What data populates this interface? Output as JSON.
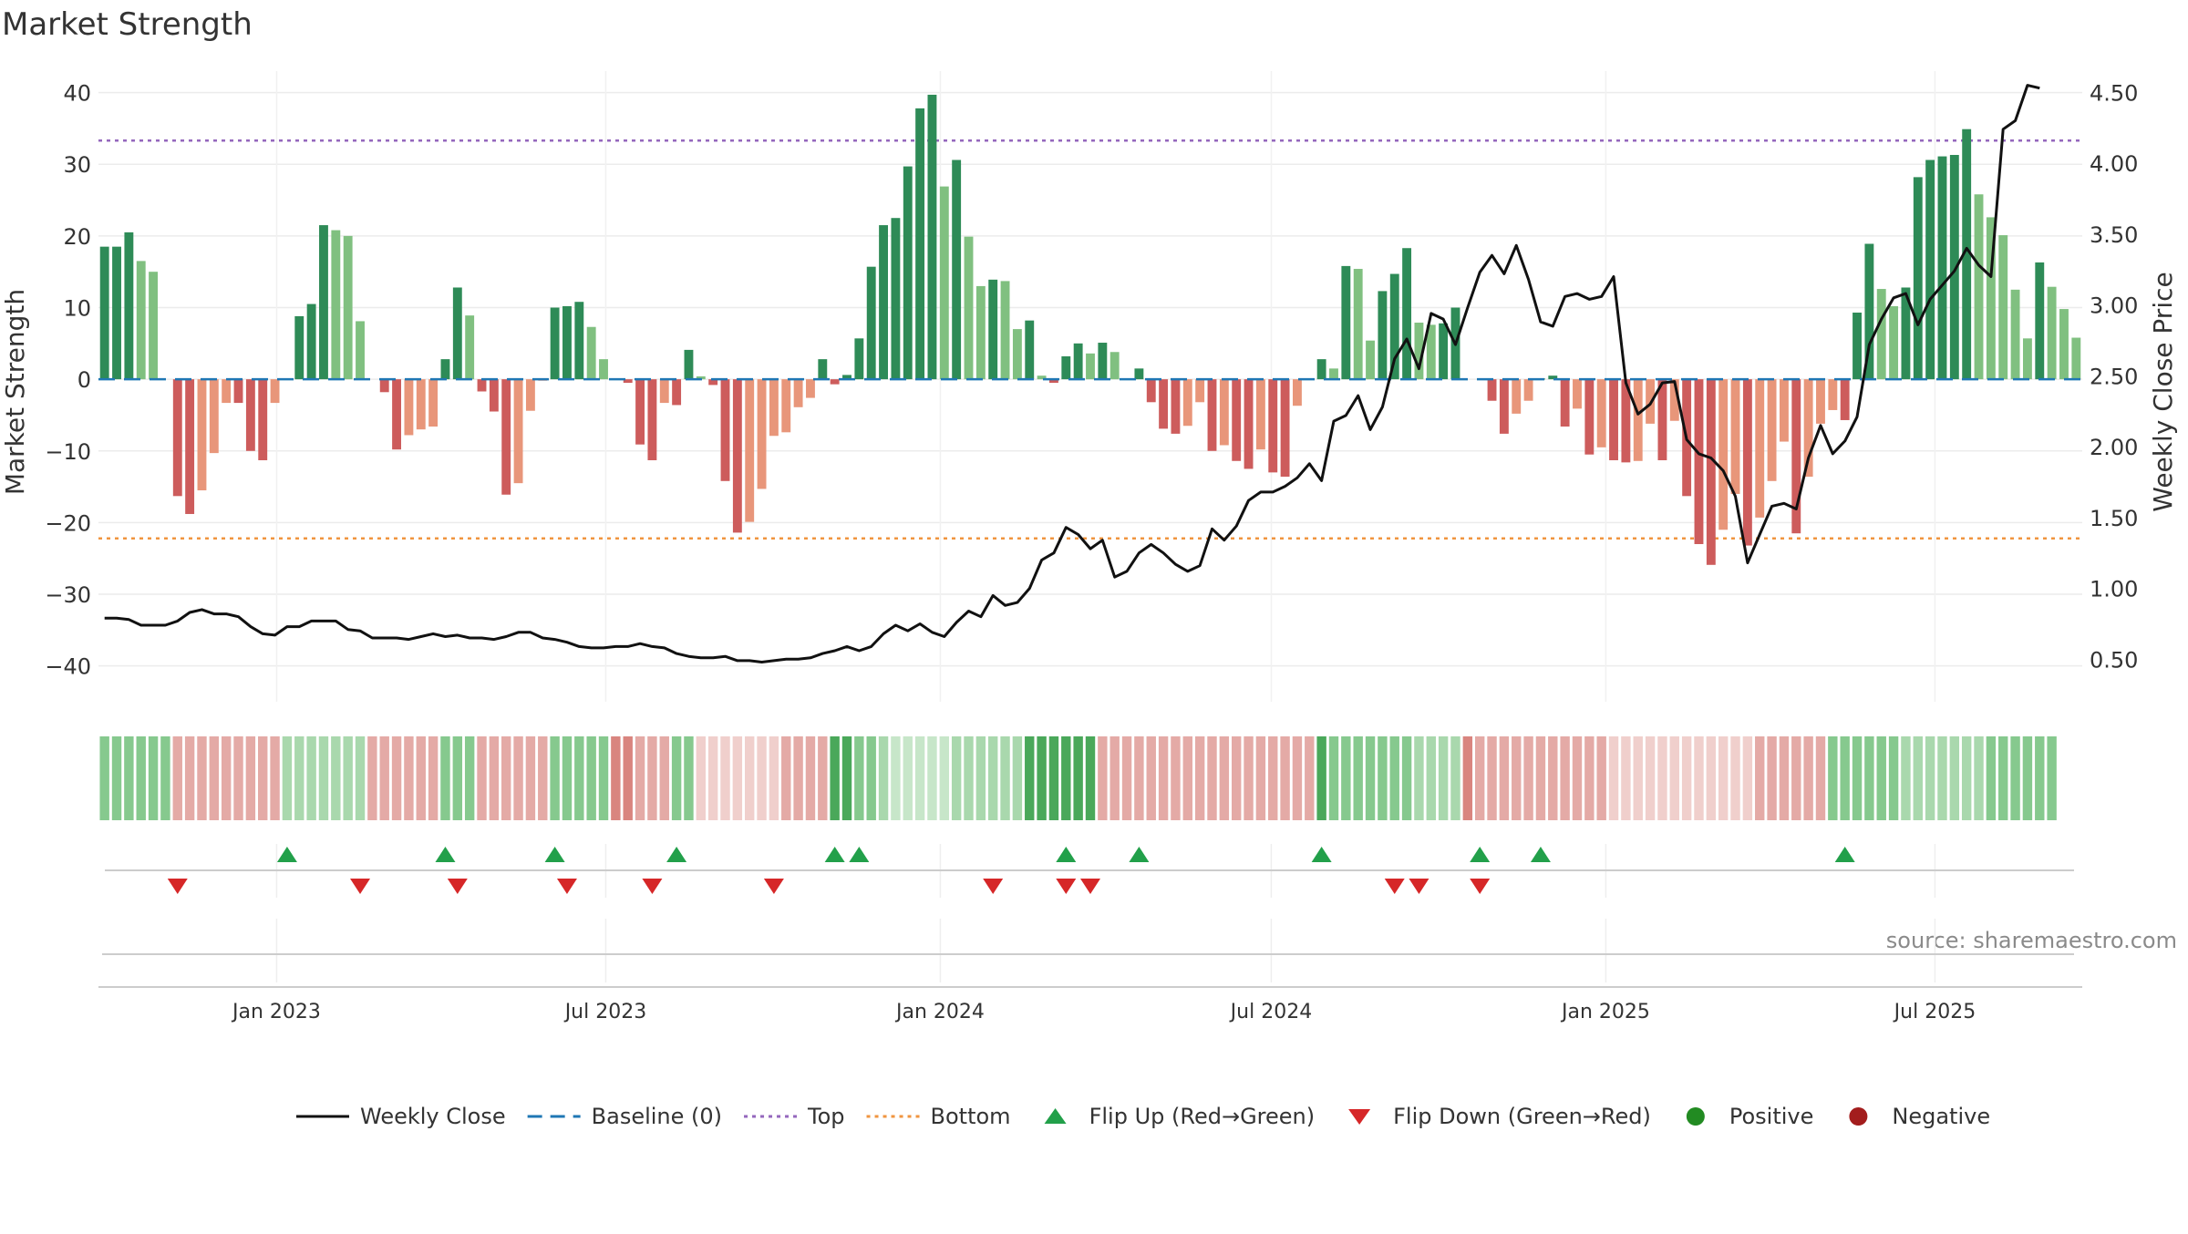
{
  "chart_data": {
    "type": "bar",
    "title": "Market Strength",
    "ylabel_left": "Market Strength",
    "ylabel_right": "Weekly Close Price",
    "source": "source: sharemaestro.com",
    "y_left_range": [
      -45,
      43
    ],
    "y_left_ticks": [
      "40",
      "30",
      "20",
      "10",
      "0",
      "−10",
      "−20",
      "−30",
      "−40"
    ],
    "y_left_tick_values": [
      40,
      30,
      20,
      10,
      0,
      -10,
      -20,
      -30,
      -40
    ],
    "y_right_range": [
      0.2,
      4.65
    ],
    "y_right_ticks": [
      "4.50",
      "4.00",
      "3.50",
      "3.00",
      "2.50",
      "2.00",
      "1.50",
      "1.00",
      "0.50"
    ],
    "y_right_tick_values": [
      4.5,
      4.0,
      3.5,
      3.0,
      2.5,
      2.0,
      1.5,
      1.0,
      0.5
    ],
    "top_threshold": 33.3,
    "bottom_threshold": -22.2,
    "x_start": "2022-09-25",
    "x_end": "2025-09-20",
    "x_ticks": [
      {
        "label": "Jan 2023",
        "date": "2023-01-01"
      },
      {
        "label": "Jul 2023",
        "date": "2023-07-01"
      },
      {
        "label": "Jan 2024",
        "date": "2024-01-01"
      },
      {
        "label": "Jul 2024",
        "date": "2024-07-01"
      },
      {
        "label": "Jan 2025",
        "date": "2025-01-01"
      },
      {
        "label": "Jul 2025",
        "date": "2025-07-01"
      }
    ],
    "strength": [
      18.5,
      18.5,
      20.5,
      16.5,
      15,
      0,
      -16.3,
      -18.8,
      -15.5,
      -10.3,
      -3.3,
      -3.3,
      -10,
      -11.3,
      -3.3,
      0,
      8.8,
      10.5,
      21.5,
      20.8,
      20,
      8.1,
      0,
      -1.8,
      -9.8,
      -7.8,
      -7,
      -6.6,
      2.8,
      12.8,
      8.9,
      -1.7,
      -4.5,
      -16.1,
      -14.5,
      -4.4,
      -0.2,
      10,
      10.2,
      10.8,
      7.3,
      2.8,
      0,
      -0.5,
      -9.1,
      -11.3,
      -3.3,
      -3.6,
      4.1,
      0.4,
      -0.8,
      -14.2,
      -21.4,
      -19.9,
      -15.3,
      -7.9,
      -7.4,
      -3.9,
      -2.6,
      2.8,
      -0.7,
      0.6,
      5.7,
      15.7,
      21.5,
      22.5,
      29.7,
      37.8,
      39.7,
      26.9,
      30.6,
      19.9,
      13,
      13.9,
      13.7,
      7,
      8.2,
      0.5,
      -0.5,
      3.2,
      5,
      3.6,
      5.1,
      3.8,
      0,
      1.5,
      -3.2,
      -6.9,
      -7.6,
      -6.5,
      -3.2,
      -10,
      -9.2,
      -11.4,
      -12.5,
      -9.8,
      -13,
      -13.6,
      -3.7,
      0,
      2.8,
      1.5,
      15.8,
      15.4,
      5.4,
      12.3,
      14.7,
      18.3,
      7.9,
      7.6,
      7.8,
      10,
      0,
      0,
      -3,
      -7.6,
      -4.8,
      -3,
      0.1,
      0.5,
      -6.6,
      -4.1,
      -10.5,
      -9.5,
      -11.3,
      -11.6,
      -11.4,
      -6.2,
      -11.3,
      -5.8,
      -16.3,
      -23,
      -25.9,
      -21,
      -16,
      -23.2,
      -19.3,
      -14.2,
      -8.7,
      -21.5,
      -13.6,
      -6.2,
      -4.3,
      -5.7,
      9.3,
      18.9,
      12.6,
      10.2,
      12.8,
      28.2,
      30.6,
      31.1,
      31.3,
      34.9,
      25.8,
      22.6,
      20.1,
      12.5,
      5.7,
      16.3,
      12.9,
      9.8,
      5.8
    ],
    "close": [
      0.79,
      0.79,
      0.78,
      0.74,
      0.74,
      0.74,
      0.77,
      0.83,
      0.85,
      0.82,
      0.82,
      0.8,
      0.73,
      0.68,
      0.67,
      0.73,
      0.73,
      0.77,
      0.77,
      0.77,
      0.71,
      0.7,
      0.65,
      0.65,
      0.65,
      0.64,
      0.66,
      0.68,
      0.66,
      0.67,
      0.65,
      0.65,
      0.64,
      0.66,
      0.69,
      0.69,
      0.65,
      0.64,
      0.62,
      0.59,
      0.58,
      0.58,
      0.59,
      0.59,
      0.61,
      0.59,
      0.58,
      0.54,
      0.52,
      0.51,
      0.51,
      0.52,
      0.49,
      0.49,
      0.48,
      0.49,
      0.5,
      0.5,
      0.51,
      0.54,
      0.56,
      0.59,
      0.56,
      0.59,
      0.68,
      0.74,
      0.7,
      0.75,
      0.69,
      0.66,
      0.76,
      0.84,
      0.8,
      0.95,
      0.88,
      0.9,
      1.0,
      1.2,
      1.25,
      1.43,
      1.38,
      1.28,
      1.34,
      1.08,
      1.12,
      1.25,
      1.31,
      1.25,
      1.17,
      1.12,
      1.16,
      1.42,
      1.34,
      1.44,
      1.62,
      1.68,
      1.68,
      1.72,
      1.78,
      1.88,
      1.76,
      2.18,
      2.22,
      2.36,
      2.12,
      2.28,
      2.62,
      2.76,
      2.55,
      2.94,
      2.9,
      2.72,
      2.98,
      3.23,
      3.35,
      3.22,
      3.42,
      3.18,
      2.88,
      2.85,
      3.06,
      3.08,
      3.04,
      3.06,
      3.2,
      2.45,
      2.23,
      2.3,
      2.45,
      2.46,
      2.05,
      1.95,
      1.92,
      1.83,
      1.65,
      1.18,
      1.38,
      1.58,
      1.6,
      1.56,
      1.92,
      2.15,
      1.95,
      2.04,
      2.21,
      2.72,
      2.9,
      3.05,
      3.08,
      2.86,
      3.04,
      3.14,
      3.24,
      3.4,
      3.28,
      3.2,
      4.24,
      4.3,
      4.55,
      4.53
    ],
    "bands": [
      {
        "start": 0,
        "end": 5,
        "color": "pos2"
      },
      {
        "start": 6,
        "end": 14,
        "color": "neg2"
      },
      {
        "start": 15,
        "end": 21,
        "color": "pos1"
      },
      {
        "start": 22,
        "end": 27,
        "color": "neg2"
      },
      {
        "start": 28,
        "end": 30,
        "color": "pos2"
      },
      {
        "start": 31,
        "end": 36,
        "color": "neg2"
      },
      {
        "start": 37,
        "end": 41,
        "color": "pos2"
      },
      {
        "start": 42,
        "end": 43,
        "color": "neg3"
      },
      {
        "start": 44,
        "end": 46,
        "color": "neg2"
      },
      {
        "start": 47,
        "end": 48,
        "color": "pos2"
      },
      {
        "start": 49,
        "end": 55,
        "color": "neg1"
      },
      {
        "start": 56,
        "end": 59,
        "color": "neg2"
      },
      {
        "start": 60,
        "end": 61,
        "color": "pos3"
      },
      {
        "start": 62,
        "end": 63,
        "color": "pos2"
      },
      {
        "start": 64,
        "end": 64,
        "color": "pos1"
      },
      {
        "start": 65,
        "end": 69,
        "color": "pos0"
      },
      {
        "start": 70,
        "end": 75,
        "color": "pos1"
      },
      {
        "start": 76,
        "end": 81,
        "color": "pos3"
      },
      {
        "start": 82,
        "end": 87,
        "color": "neg2"
      },
      {
        "start": 88,
        "end": 99,
        "color": "neg2"
      },
      {
        "start": 100,
        "end": 100,
        "color": "pos3"
      },
      {
        "start": 101,
        "end": 107,
        "color": "pos2"
      },
      {
        "start": 108,
        "end": 111,
        "color": "pos1"
      },
      {
        "start": 112,
        "end": 112,
        "color": "neg3"
      },
      {
        "start": 113,
        "end": 115,
        "color": "neg2"
      },
      {
        "start": 116,
        "end": 123,
        "color": "neg2"
      },
      {
        "start": 124,
        "end": 130,
        "color": "neg1"
      },
      {
        "start": 131,
        "end": 135,
        "color": "neg1"
      },
      {
        "start": 136,
        "end": 141,
        "color": "neg2"
      },
      {
        "start": 142,
        "end": 147,
        "color": "pos2"
      },
      {
        "start": 148,
        "end": 154,
        "color": "pos1"
      },
      {
        "start": 155,
        "end": 160,
        "color": "pos2"
      }
    ],
    "flip_up_indices": [
      15,
      28,
      37,
      47,
      60,
      62,
      79,
      85,
      100,
      113,
      118,
      143
    ],
    "flip_down_indices": [
      6,
      21,
      29,
      38,
      45,
      55,
      73,
      79,
      81,
      106,
      108,
      113
    ],
    "legend": [
      {
        "label": "Weekly Close",
        "kind": "line",
        "color": "#111111"
      },
      {
        "label": "Baseline (0)",
        "kind": "dash",
        "color": "#1f77b4"
      },
      {
        "label": "Top",
        "kind": "dot",
        "color": "#9467bd"
      },
      {
        "label": "Bottom",
        "kind": "dot",
        "color": "#f0953f"
      },
      {
        "label": "Flip Up (Red→Green)",
        "kind": "tri-up",
        "color": "#22a04a"
      },
      {
        "label": "Flip Down (Green→Red)",
        "kind": "tri-down",
        "color": "#d62728"
      },
      {
        "label": "Positive",
        "kind": "dot-marker",
        "color": "#228b22"
      },
      {
        "label": "Negative",
        "kind": "dot-marker",
        "color": "#a31d1d"
      }
    ],
    "colors": {
      "pos_dark": "#2e8b57",
      "pos_light": "#80c080",
      "neg_dark": "#cd5c5c",
      "neg_light": "#e8967a",
      "pos3": "#4aa85a",
      "pos2": "#86c98e",
      "pos1": "#a9d8ad",
      "pos0": "#c7e6c9",
      "neg3": "#d9857f",
      "neg2": "#e4aaa6",
      "neg1": "#f0cfcc"
    }
  }
}
